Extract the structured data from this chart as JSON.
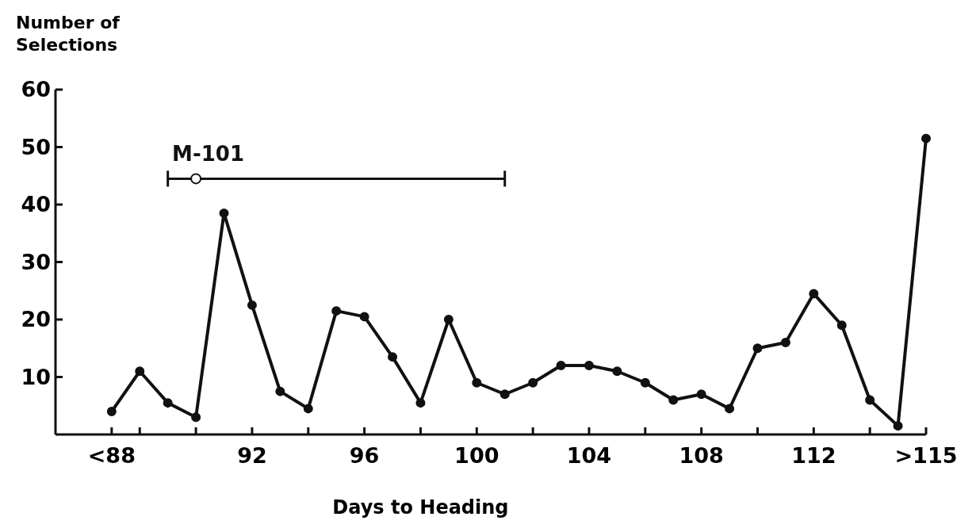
{
  "chart_data": {
    "type": "line",
    "xlabel": "Days to Heading",
    "ylabel": "Number of Selections",
    "xlim": [
      85,
      116
    ],
    "xticks": [
      {
        "value": 87,
        "label": "<88"
      },
      {
        "value": 88,
        "label": null
      },
      {
        "value": 90,
        "label": null
      },
      92,
      {
        "value": 94,
        "label": null
      },
      96,
      {
        "value": 98,
        "label": null
      },
      100,
      {
        "value": 102,
        "label": null
      },
      104,
      {
        "value": 106,
        "label": null
      },
      108,
      {
        "value": 110,
        "label": null
      },
      112,
      {
        "value": 114,
        "label": null
      },
      {
        "value": 116,
        "label": ">115"
      }
    ],
    "ylim": [
      0,
      60
    ],
    "yticks": [
      10,
      20,
      30,
      40,
      50,
      60
    ],
    "grid": false,
    "marker": "circle",
    "line_style": "solid",
    "x": [
      87,
      88,
      89,
      90,
      91,
      92,
      93,
      94,
      95,
      96,
      97,
      98,
      99,
      100,
      101,
      102,
      103,
      104,
      105,
      106,
      107,
      108,
      109,
      110,
      111,
      112,
      113,
      114,
      115,
      116
    ],
    "series": [
      {
        "color": "#111111",
        "values": [
          4,
          11,
          5.5,
          3,
          38.5,
          22.5,
          7.5,
          4.5,
          21.5,
          20.5,
          13.5,
          5.5,
          20,
          9,
          7,
          9,
          12,
          12,
          11,
          9,
          6,
          7,
          4.5,
          15,
          16,
          24.5,
          19,
          6,
          1.5,
          51.5
        ]
      },
      {
        "name": "M-101",
        "type": "scatter",
        "color": "#111111",
        "x": [
          90
        ],
        "values": [
          44.5
        ],
        "xerrors": [
          [
            89,
            101
          ]
        ]
      }
    ]
  }
}
